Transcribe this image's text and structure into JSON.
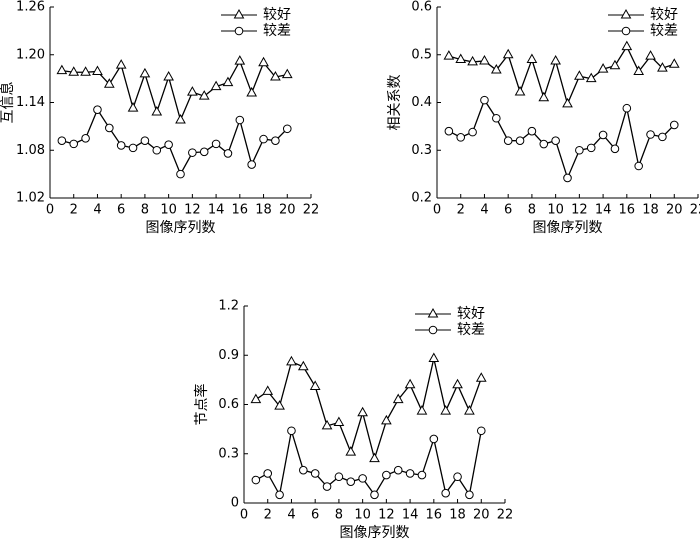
{
  "chart_data": [
    {
      "type": "line",
      "x_label": "图像序列数",
      "y_label": "互信息",
      "x": [
        1,
        2,
        3,
        4,
        5,
        6,
        7,
        8,
        9,
        10,
        11,
        12,
        13,
        14,
        15,
        16,
        17,
        18,
        19,
        20
      ],
      "series": [
        {
          "name": "较好",
          "color": "#000000",
          "marker": "triangle",
          "values": [
            1.18,
            1.178,
            1.178,
            1.179,
            1.163,
            1.187,
            1.133,
            1.176,
            1.128,
            1.172,
            1.118,
            1.153,
            1.148,
            1.16,
            1.165,
            1.192,
            1.152,
            1.19,
            1.172,
            1.175
          ]
        },
        {
          "name": "较差",
          "color": "#000000",
          "marker": "circle",
          "values": [
            1.092,
            1.088,
            1.095,
            1.131,
            1.108,
            1.086,
            1.083,
            1.092,
            1.08,
            1.087,
            1.05,
            1.077,
            1.078,
            1.088,
            1.076,
            1.118,
            1.062,
            1.094,
            1.092,
            1.107
          ]
        }
      ],
      "xlim": [
        0,
        22
      ],
      "xticks": [
        0,
        2,
        4,
        6,
        8,
        10,
        12,
        14,
        16,
        18,
        20,
        22
      ],
      "ylim": [
        1.02,
        1.26
      ],
      "yticks": [
        1.02,
        1.08,
        1.14,
        {
          "value": 1.2,
          "label": "1.20"
        },
        1.26
      ]
    },
    {
      "type": "line",
      "x_label": "图像序列数",
      "y_label": "相关系数",
      "x": [
        1,
        2,
        3,
        4,
        5,
        6,
        7,
        8,
        9,
        10,
        11,
        12,
        13,
        14,
        15,
        16,
        17,
        18,
        19,
        20
      ],
      "series": [
        {
          "name": "较好",
          "color": "#000000",
          "marker": "triangle",
          "values": [
            0.497,
            0.49,
            0.485,
            0.487,
            0.468,
            0.5,
            0.422,
            0.49,
            0.41,
            0.487,
            0.397,
            0.455,
            0.45,
            0.47,
            0.477,
            0.517,
            0.465,
            0.497,
            0.472,
            0.48
          ]
        },
        {
          "name": "较差",
          "color": "#000000",
          "marker": "circle",
          "values": [
            0.34,
            0.327,
            0.338,
            0.405,
            0.367,
            0.32,
            0.32,
            0.34,
            0.313,
            0.32,
            0.242,
            0.3,
            0.305,
            0.332,
            0.303,
            0.388,
            0.267,
            0.333,
            0.328,
            0.353
          ]
        }
      ],
      "xlim": [
        0,
        22
      ],
      "xticks": [
        0,
        2,
        4,
        6,
        8,
        10,
        12,
        14,
        16,
        18,
        20,
        22
      ],
      "ylim": [
        0.2,
        0.6
      ],
      "yticks": [
        0.2,
        0.3,
        0.4,
        0.5,
        0.6
      ]
    },
    {
      "type": "line",
      "x_label": "图像序列数",
      "y_label": "节点率",
      "x": [
        1,
        2,
        3,
        4,
        5,
        6,
        7,
        8,
        9,
        10,
        11,
        12,
        13,
        14,
        15,
        16,
        17,
        18,
        19,
        20
      ],
      "series": [
        {
          "name": "较好",
          "color": "#000000",
          "marker": "triangle",
          "values": [
            0.63,
            0.68,
            0.59,
            0.86,
            0.83,
            0.71,
            0.47,
            0.49,
            0.31,
            0.55,
            0.27,
            0.5,
            0.63,
            0.72,
            0.56,
            0.88,
            0.56,
            0.72,
            0.56,
            0.76
          ]
        },
        {
          "name": "较差",
          "color": "#000000",
          "marker": "circle",
          "values": [
            0.14,
            0.18,
            0.05,
            0.44,
            0.2,
            0.18,
            0.1,
            0.16,
            0.13,
            0.15,
            0.05,
            0.17,
            0.2,
            0.18,
            0.17,
            0.39,
            0.06,
            0.16,
            0.05,
            0.44
          ]
        }
      ],
      "xlim": [
        0,
        22
      ],
      "xticks": [
        0,
        2,
        4,
        6,
        8,
        10,
        12,
        14,
        16,
        18,
        20,
        22
      ],
      "ylim": [
        0,
        1.2
      ],
      "yticks": [
        0,
        0.3,
        0.6,
        0.9,
        1.2
      ]
    }
  ]
}
